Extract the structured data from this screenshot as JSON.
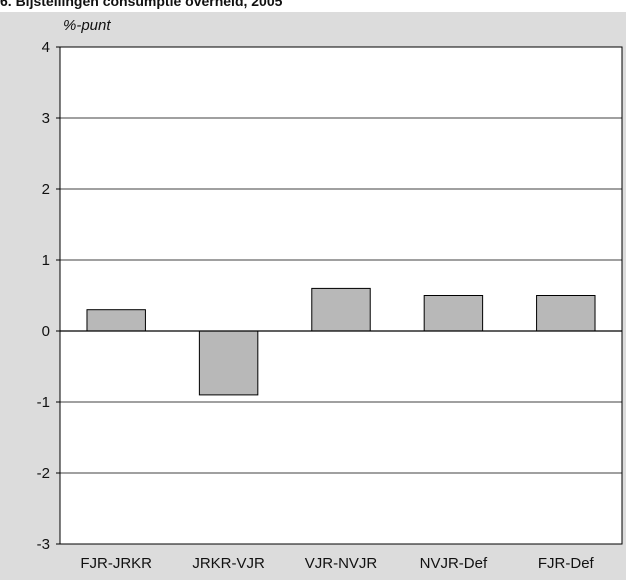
{
  "title": "6. Bijstellingen consumptie overheid, 2005",
  "colors": {
    "panel_background": "#dcdcdc",
    "plot_background": "#ffffff",
    "bar_fill": "#b8b8b8",
    "bar_stroke": "#000000",
    "grid": "#000000"
  },
  "chart_data": {
    "type": "bar",
    "title": "6. Bijstellingen consumptie overheid, 2005",
    "ylabel": "%-punt",
    "xlabel": "",
    "categories": [
      "FJR-JRKR",
      "JRKR-VJR",
      "VJR-NVJR",
      "NVJR-Def",
      "FJR-Def"
    ],
    "values": [
      0.3,
      -0.9,
      0.6,
      0.5,
      0.5
    ],
    "ylim": [
      -3,
      4
    ],
    "yticks": [
      "4",
      "3",
      "2",
      "1",
      "0",
      "-1",
      "-2",
      "-3"
    ],
    "grid": true,
    "legend": "none"
  }
}
